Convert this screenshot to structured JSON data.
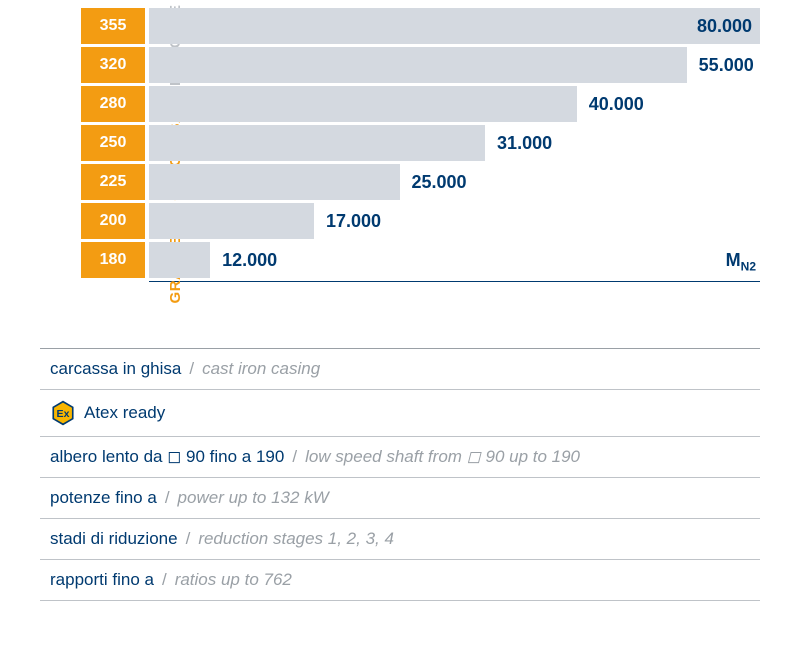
{
  "chart": {
    "type": "bar_horizontal",
    "y_axis_label_primary": "GRANDEZZA CARCASSA",
    "y_axis_label_secondary": "GEAR CASE SIZE",
    "x_axis_unit_html": "M<sub>N2</sub>",
    "bar_color": "#d4d9e0",
    "category_bg": "#f39c12",
    "category_fg": "#ffffff",
    "value_color": "#003a70",
    "axis_color": "#003a70",
    "background_color": "#ffffff",
    "max_value": 80000,
    "label_fontsize": 15,
    "value_fontsize": 18,
    "category_fontsize": 16,
    "bars": [
      {
        "category": "355",
        "value": 80000,
        "value_label": "80.000",
        "pct": 100,
        "label_inside": true
      },
      {
        "category": "320",
        "value": 55000,
        "value_label": "55.000",
        "pct": 88,
        "label_inside": false
      },
      {
        "category": "280",
        "value": 40000,
        "value_label": "40.000",
        "pct": 70,
        "label_inside": false
      },
      {
        "category": "250",
        "value": 31000,
        "value_label": "31.000",
        "pct": 55,
        "label_inside": false
      },
      {
        "category": "225",
        "value": 25000,
        "value_label": "25.000",
        "pct": 41,
        "label_inside": false
      },
      {
        "category": "200",
        "value": 17000,
        "value_label": "17.000",
        "pct": 27,
        "label_inside": false
      },
      {
        "category": "180",
        "value": 12000,
        "value_label": "12.000",
        "pct": 10,
        "label_inside": false
      }
    ]
  },
  "specs": {
    "border_color": "#bfc3c8",
    "primary_color": "#003a70",
    "secondary_color": "#9aa0a6",
    "fontsize": 17,
    "rows": [
      {
        "primary": "carcassa in ghisa",
        "secondary": "cast iron casing",
        "icon": null
      },
      {
        "primary": "Atex ready",
        "secondary": null,
        "icon": "atex"
      },
      {
        "primary": "albero lento da ◻ 90 fino a 190",
        "secondary": "low speed shaft from ◻ 90 up to 190",
        "icon": null
      },
      {
        "primary": "potenze fino a",
        "secondary": "power up to 132 kW",
        "icon": null
      },
      {
        "primary": "stadi di riduzione",
        "secondary": "reduction stages 1, 2, 3, 4",
        "icon": null
      },
      {
        "primary": "rapporti fino a",
        "secondary": "ratios up to 762",
        "icon": null
      }
    ]
  },
  "atex_icon": {
    "hex_fill": "#f7b500",
    "hex_stroke": "#003a70",
    "text": "Ex",
    "text_color": "#003a70"
  }
}
